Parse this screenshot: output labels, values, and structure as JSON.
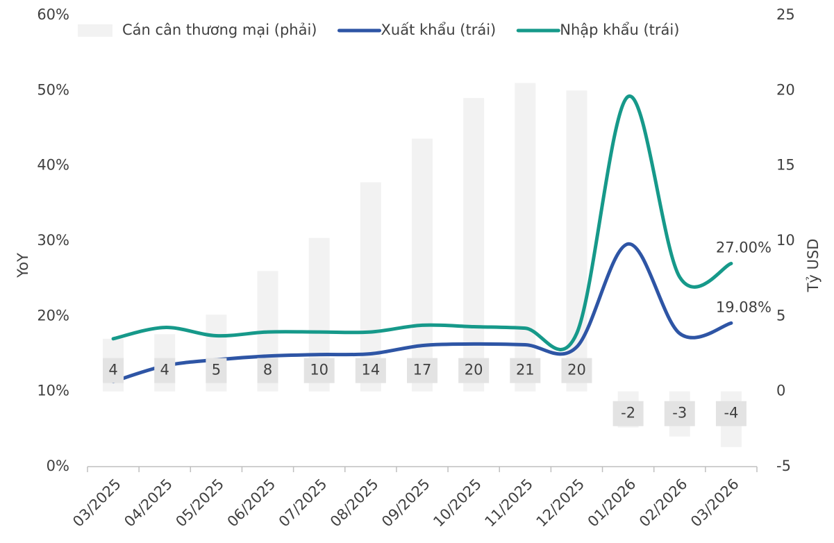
{
  "chart_data": {
    "type": "combo",
    "categories": [
      "03/2025",
      "04/2025",
      "05/2025",
      "06/2025",
      "07/2025",
      "08/2025",
      "09/2025",
      "10/2025",
      "11/2025",
      "12/2025",
      "01/2026",
      "02/2026",
      "03/2026"
    ],
    "series": [
      {
        "name": "Cán cân thương mại (phải)",
        "type": "bar",
        "axis": "y2",
        "color": "#f2f2f2",
        "values": [
          3.5,
          3.8,
          5.1,
          8.0,
          10.2,
          13.9,
          16.8,
          19.5,
          20.5,
          20.0,
          -2.4,
          -3.0,
          -3.7
        ],
        "value_labels": [
          "4",
          "4",
          "5",
          "8",
          "10",
          "14",
          "17",
          "20",
          "21",
          "20",
          "-2",
          "-3",
          "-4"
        ]
      },
      {
        "name": "Xuất khẩu (trái)",
        "type": "line",
        "color": "#2e55a5",
        "values": [
          11.3,
          13.4,
          14.2,
          14.7,
          14.9,
          15.0,
          16.1,
          16.3,
          16.2,
          15.9,
          29.6,
          17.7,
          19.08
        ],
        "value_labels": [
          null,
          null,
          null,
          null,
          null,
          null,
          null,
          null,
          null,
          null,
          null,
          null,
          "19.08%"
        ]
      },
      {
        "name": "Nhập khẩu (trái)",
        "type": "line",
        "color": "#16998a",
        "values": [
          17.0,
          18.5,
          17.4,
          17.9,
          17.9,
          17.9,
          18.8,
          18.6,
          18.4,
          17.7,
          49.2,
          25.2,
          27.0
        ],
        "value_labels": [
          null,
          null,
          null,
          null,
          null,
          null,
          null,
          null,
          null,
          null,
          null,
          null,
          "27.00%"
        ]
      }
    ],
    "y_label": "YoY",
    "y2_label": "Tỷ USD",
    "ylim": [
      0,
      60
    ],
    "yticks": [
      {
        "value": 0,
        "label": "0%"
      },
      {
        "value": 10,
        "label": "10%"
      },
      {
        "value": 20,
        "label": "20%"
      },
      {
        "value": 30,
        "label": "30%"
      },
      {
        "value": 40,
        "label": "40%"
      },
      {
        "value": 50,
        "label": "50%"
      },
      {
        "value": 60,
        "label": "60%"
      }
    ],
    "y2lim": [
      -5,
      25
    ],
    "y2ticks": [
      -5,
      0,
      5,
      10,
      15,
      20,
      25
    ],
    "legend": "top"
  }
}
